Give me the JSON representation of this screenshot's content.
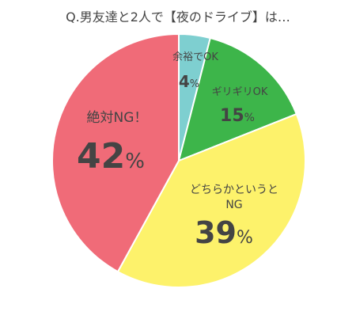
{
  "chart_data": {
    "type": "pie",
    "title": "Q.男友達と2人で【夜のドライブ】は…",
    "start_angle_deg": 0,
    "direction": "clockwise",
    "slices": [
      {
        "label": "余裕でOK",
        "value": 4,
        "value_text": "4",
        "color": "#7ecfd0"
      },
      {
        "label": "ギリギリOK",
        "value": 15,
        "value_text": "15",
        "color": "#3db54a"
      },
      {
        "label_lines": [
          "どちらかというと",
          "NG"
        ],
        "value": 39,
        "value_text": "39",
        "color": "#fdf26b"
      },
      {
        "label": "絶対NG！",
        "value": 42,
        "value_text": "42",
        "color": "#f06b78"
      }
    ],
    "unit": "%"
  }
}
